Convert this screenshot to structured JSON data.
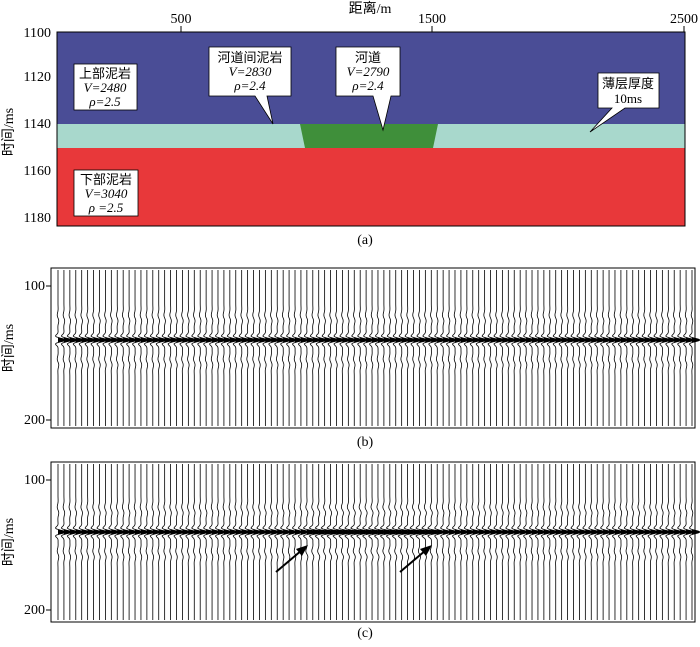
{
  "panel_a": {
    "x_axis_label": "距离/m",
    "y_axis_label": "时间/ms",
    "x_ticks": [
      {
        "label": "500",
        "value": 500
      },
      {
        "label": "1500",
        "value": 1500
      },
      {
        "label": "2500",
        "value": 2500
      }
    ],
    "y_ticks": [
      {
        "label": "1100",
        "value": 1100
      },
      {
        "label": "1120",
        "value": 1120
      },
      {
        "label": "1140",
        "value": 1140
      },
      {
        "label": "1160",
        "value": 1160
      },
      {
        "label": "1180",
        "value": 1180
      }
    ],
    "caption": "(a)",
    "colors": {
      "upper_mudstone": "#4a4d96",
      "thin_layer": "#a8d8cc",
      "channel": "#3f8f3a",
      "lower_mudstone": "#e8383a"
    },
    "labels": {
      "upper": {
        "name": "上部泥岩",
        "v": "V=2480",
        "rho": "ρ=2.5"
      },
      "interchannel": {
        "name": "河道间泥岩",
        "v": "V=2830",
        "rho": "ρ=2.4"
      },
      "channel": {
        "name": "河道",
        "v": "V=2790",
        "rho": "ρ=2.4"
      },
      "thin": {
        "name": "薄层厚度",
        "value": "10ms"
      },
      "lower": {
        "name": "下部泥岩",
        "v": "V=3040",
        "rho": "ρ =2.5"
      }
    }
  },
  "panel_b": {
    "y_axis_label": "时间/ms",
    "y_ticks": [
      {
        "label": "100",
        "value": 100
      },
      {
        "label": "200",
        "value": 200
      }
    ],
    "caption": "(b)"
  },
  "panel_c": {
    "y_axis_label": "时间/ms",
    "y_ticks": [
      {
        "label": "100",
        "value": 100
      },
      {
        "label": "200",
        "value": 200
      }
    ],
    "caption": "(c)"
  }
}
